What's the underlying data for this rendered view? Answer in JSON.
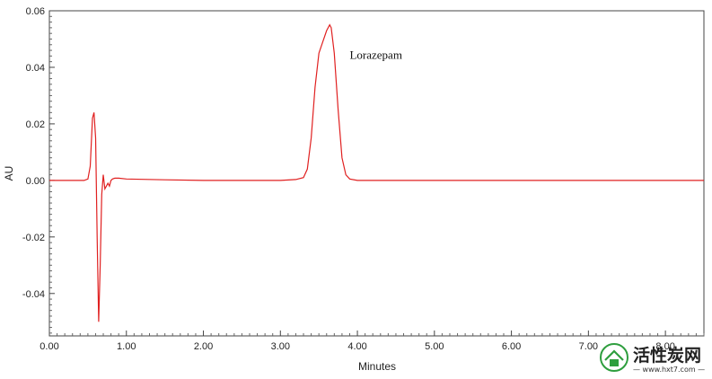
{
  "chart_data": {
    "type": "line",
    "xlabel": "Minutes",
    "ylabel": "AU",
    "xlim": [
      0,
      8.5
    ],
    "ylim": [
      -0.055,
      0.06
    ],
    "x_ticks": [
      "0.00",
      "1.00",
      "2.00",
      "3.00",
      "4.00",
      "5.00",
      "6.00",
      "7.00",
      "8.00"
    ],
    "y_ticks": [
      "0.06",
      "0.04",
      "0.02",
      "0.00",
      "-0.02",
      "-0.04"
    ],
    "line_color": "#e02020",
    "grid": false,
    "annotations": [
      {
        "text": "Lorazepam",
        "x": 3.9,
        "y": 0.043
      }
    ],
    "series": [
      {
        "x": [
          0.0,
          0.3,
          0.45,
          0.5,
          0.53,
          0.56,
          0.58,
          0.6,
          0.62,
          0.64,
          0.66,
          0.68,
          0.7,
          0.72,
          0.74,
          0.76,
          0.78,
          0.8,
          0.82,
          0.85,
          0.9,
          1.0,
          1.5,
          2.0,
          2.5,
          3.0,
          3.2,
          3.3,
          3.35,
          3.4,
          3.45,
          3.5,
          3.55,
          3.6,
          3.64,
          3.66,
          3.7,
          3.75,
          3.8,
          3.85,
          3.9,
          4.0,
          4.5,
          5.0,
          6.0,
          7.0,
          8.0,
          8.5
        ],
        "y": [
          0.0,
          0.0,
          0.0,
          0.0005,
          0.005,
          0.022,
          0.024,
          0.015,
          -0.02,
          -0.05,
          -0.03,
          -0.005,
          0.002,
          -0.003,
          -0.002,
          -0.001,
          -0.002,
          0.0,
          0.0005,
          0.0008,
          0.0008,
          0.0005,
          0.0002,
          0.0,
          0.0,
          0.0,
          0.0003,
          0.001,
          0.004,
          0.015,
          0.033,
          0.045,
          0.049,
          0.053,
          0.055,
          0.054,
          0.045,
          0.025,
          0.008,
          0.002,
          0.0005,
          0.0,
          0.0,
          0.0,
          0.0,
          0.0,
          0.0,
          0.0
        ]
      }
    ]
  },
  "watermark": {
    "text": "活性炭网",
    "url": "— www.hxt7.com —",
    "icon": "leaf-house-icon",
    "icon_color": "#2e9e3e"
  }
}
